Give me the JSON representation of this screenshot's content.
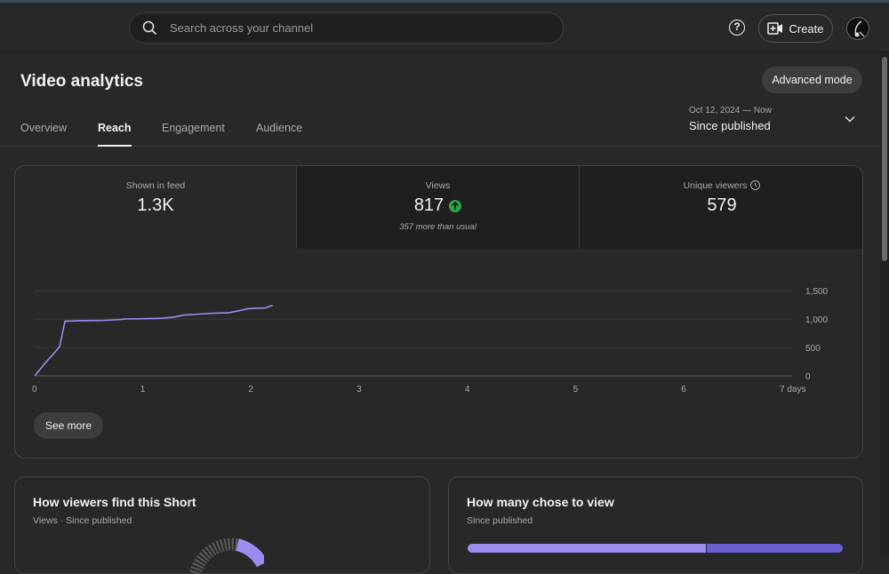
{
  "search": {
    "placeholder": "Search across your channel"
  },
  "header": {
    "create_label": "Create"
  },
  "page": {
    "title": "Video analytics",
    "advanced_mode_label": "Advanced mode",
    "date_range": {
      "range": "Oct 12, 2024 — Now",
      "label": "Since published"
    },
    "tabs": [
      {
        "label": "Overview",
        "active": false
      },
      {
        "label": "Reach",
        "active": true
      },
      {
        "label": "Engagement",
        "active": false
      },
      {
        "label": "Audience",
        "active": false
      }
    ]
  },
  "metrics": [
    {
      "label": "Shown in feed",
      "value": "1.3K"
    },
    {
      "label": "Views",
      "value": "817",
      "note": "357 more than usual"
    },
    {
      "label": "Unique viewers",
      "value": "579"
    }
  ],
  "see_more_label": "See more",
  "chart_data": {
    "type": "line",
    "series": [
      {
        "values": [
          [
            0,
            0
          ],
          [
            0.1,
            230
          ],
          [
            0.23,
            510
          ],
          [
            0.28,
            960
          ],
          [
            0.4,
            970
          ],
          [
            0.65,
            975
          ],
          [
            0.78,
            990
          ],
          [
            0.85,
            1000
          ],
          [
            1.0,
            1005
          ],
          [
            1.15,
            1010
          ],
          [
            1.28,
            1030
          ],
          [
            1.38,
            1070
          ],
          [
            1.55,
            1090
          ],
          [
            1.65,
            1100
          ],
          [
            1.8,
            1110
          ],
          [
            1.9,
            1150
          ],
          [
            1.97,
            1180
          ],
          [
            2.05,
            1190
          ],
          [
            2.13,
            1195
          ],
          [
            2.2,
            1240
          ]
        ],
        "color": "#9b8df0"
      }
    ],
    "x_ticks": [
      "0",
      "1",
      "2",
      "3",
      "4",
      "5",
      "6",
      "7 days"
    ],
    "y_ticks": [
      "1,500",
      "1,000",
      "500",
      "0"
    ],
    "xlim": [
      0,
      7
    ],
    "ylim": [
      0,
      1500
    ],
    "grid": true
  },
  "cards": [
    {
      "title": "How viewers find this Short",
      "subtitle": "Views · Since published"
    },
    {
      "title": "How many chose to view",
      "subtitle": "Since published"
    }
  ]
}
